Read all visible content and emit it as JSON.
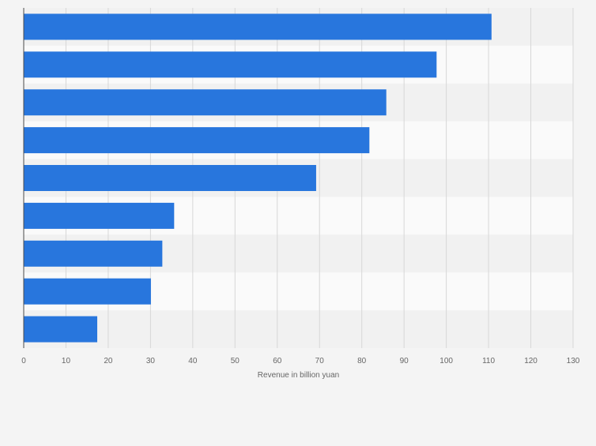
{
  "chart_data": {
    "type": "bar",
    "orientation": "horizontal",
    "categories": [
      "",
      "",
      "",
      "",
      "",
      "",
      "",
      "",
      ""
    ],
    "values": [
      110.7,
      97.7,
      85.8,
      81.8,
      69.2,
      35.6,
      32.8,
      30.1,
      17.4
    ],
    "title": "",
    "xlabel": "Revenue in billion yuan",
    "ylabel": "",
    "xlim": [
      0,
      130
    ],
    "xticks": [
      0,
      10,
      20,
      30,
      40,
      50,
      60,
      70,
      80,
      90,
      100,
      110,
      120,
      130
    ],
    "xtick_labels": [
      "0",
      "10",
      "20",
      "30",
      "40",
      "50",
      "60",
      "70",
      "80",
      "90",
      "100",
      "110",
      "120",
      "130"
    ],
    "grid": true,
    "legend": "none",
    "colors": {
      "bar": "#2876dd",
      "band_dark": "#f1f1f1",
      "band_light": "#fafafa",
      "background": "#f4f4f4",
      "grid": "#d7d7d7",
      "axis": "#4a4a4a",
      "text": "#666666"
    }
  }
}
